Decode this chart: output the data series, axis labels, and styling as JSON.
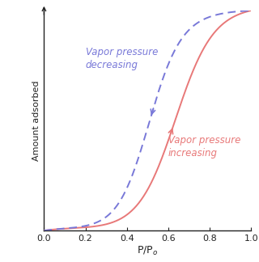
{
  "xlabel": "P/P$_o$",
  "ylabel": "Amount adsorbed",
  "xlim": [
    0,
    1.0
  ],
  "ylim": [
    0,
    1.0
  ],
  "xticks": [
    0,
    0.2,
    0.4,
    0.6,
    0.8,
    1.0
  ],
  "adsorption_color": "#e87878",
  "desorption_color": "#7878d8",
  "label_adsorption": "Vapor pressure\nincreasing",
  "label_desorption": "Vapor pressure\ndecreasing",
  "background_color": "#ffffff",
  "adsorption_inflection": 0.63,
  "desorption_inflection": 0.5,
  "adsorption_steepness": 11,
  "desorption_steepness": 13
}
